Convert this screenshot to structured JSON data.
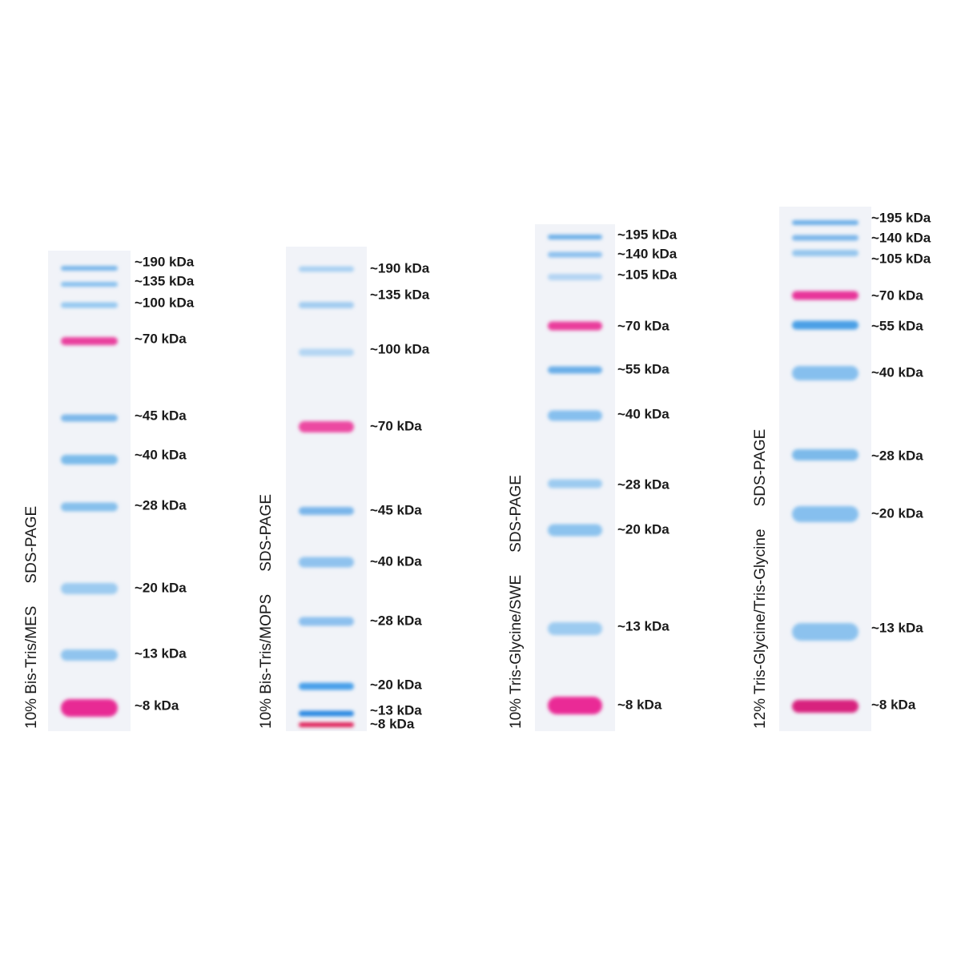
{
  "gels": [
    {
      "label": "10% Bis-Tris/MES",
      "method": "SDS-PAGE",
      "bands": [
        {
          "label": "~190 kDa",
          "color": "#78b6ea"
        },
        {
          "label": "~135 kDa",
          "color": "#86bfee"
        },
        {
          "label": "~100 kDa",
          "color": "#94c8f0"
        },
        {
          "label": "~70 kDa",
          "color": "#e9409e"
        },
        {
          "label": "~45 kDa",
          "color": "#7db8ea"
        },
        {
          "label": "~40 kDa",
          "color": "#7cbbea"
        },
        {
          "label": "~28 kDa",
          "color": "#86c0ec"
        },
        {
          "label": "~20 kDa",
          "color": "#9ccbf0"
        },
        {
          "label": "~13 kDa",
          "color": "#90c4ee"
        },
        {
          "label": "~8 kDa",
          "color": "#e82c94"
        }
      ]
    },
    {
      "label": "10% Bis-Tris/MOPS",
      "method": "SDS-PAGE",
      "bands": [
        {
          "label": "~190 kDa",
          "color": "#a9d0f2"
        },
        {
          "label": "~135 kDa",
          "color": "#a2ccf0"
        },
        {
          "label": "~100 kDa",
          "color": "#b4d6f3"
        },
        {
          "label": "~70 kDa",
          "color": "#ec4aa2"
        },
        {
          "label": "~45 kDa",
          "color": "#7ab6ea"
        },
        {
          "label": "~40 kDa",
          "color": "#8fc2ee"
        },
        {
          "label": "~28 kDa",
          "color": "#8cc0ee"
        },
        {
          "label": "~20 kDa",
          "color": "#4aa0ea"
        },
        {
          "label": "~13 kDa",
          "color": "#2a88e2"
        },
        {
          "label": "~8 kDa",
          "color": "#e0205a"
        }
      ]
    },
    {
      "label": "10% Tris-Glycine/SWE",
      "method": "SDS-PAGE",
      "bands": [
        {
          "label": "~195 kDa",
          "color": "#6aaee8"
        },
        {
          "label": "~140 kDa",
          "color": "#8cc0ee"
        },
        {
          "label": "~105 kDa",
          "color": "#b2d4f3"
        },
        {
          "label": "~70 kDa",
          "color": "#ea3c9c"
        },
        {
          "label": "~55 kDa",
          "color": "#6aaee8"
        },
        {
          "label": "~40 kDa",
          "color": "#86bfee"
        },
        {
          "label": "~28 kDa",
          "color": "#9ccbf0"
        },
        {
          "label": "~20 kDa",
          "color": "#8cc3ee"
        },
        {
          "label": "~13 kDa",
          "color": "#9ccbf0"
        },
        {
          "label": "~8 kDa",
          "color": "#ea2c96"
        }
      ]
    },
    {
      "label": "12% Tris-Glycine/Tris-Glycine",
      "method": "SDS-PAGE",
      "bands": [
        {
          "label": "~195 kDa",
          "color": "#6aaee8"
        },
        {
          "label": "~140 kDa",
          "color": "#7ab6ea"
        },
        {
          "label": "~105 kDa",
          "color": "#94c6ee"
        },
        {
          "label": "~70 kDa",
          "color": "#e8349a"
        },
        {
          "label": "~55 kDa",
          "color": "#4ca0e6"
        },
        {
          "label": "~40 kDa",
          "color": "#86bfee"
        },
        {
          "label": "~28 kDa",
          "color": "#7cbaea"
        },
        {
          "label": "~20 kDa",
          "color": "#86bfee"
        },
        {
          "label": "~13 kDa",
          "color": "#8cc2ee"
        },
        {
          "label": "~8 kDa",
          "color": "#d8207e"
        }
      ]
    }
  ]
}
